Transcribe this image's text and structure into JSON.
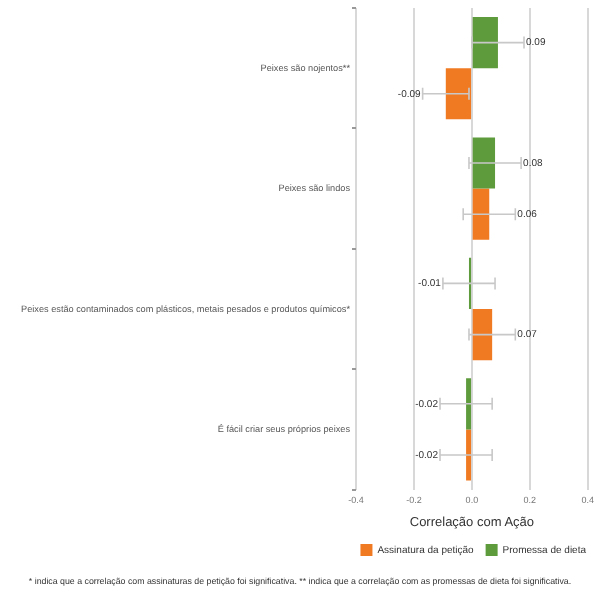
{
  "chart_data": {
    "type": "bar",
    "orientation": "horizontal",
    "xlabel": "Correlação com Ação",
    "categories": [
      "Peixes são nojentos**",
      "Peixes são lindos",
      "Peixes estão contaminados com plásticos, metais pesados e produtos químicos*",
      "É fácil criar seus próprios peixes"
    ],
    "series": [
      {
        "name": "Promessa de dieta",
        "color": "#5e9b3c",
        "values": [
          0.09,
          0.08,
          -0.01,
          -0.02
        ],
        "value_labels": [
          "0.09",
          "0.08",
          "-0.01",
          "-0.02"
        ],
        "errors": [
          0.09,
          0.09,
          0.09,
          0.09
        ]
      },
      {
        "name": "Assinatura da petição",
        "color": "#f07a22",
        "values": [
          -0.09,
          0.06,
          0.07,
          -0.02
        ],
        "value_labels": [
          "-0.09",
          "0.06",
          "0.07",
          "-0.02"
        ],
        "errors": [
          0.08,
          0.09,
          0.08,
          0.09
        ]
      }
    ],
    "xlim": [
      -0.4,
      0.4
    ],
    "xticks": [
      -0.4,
      -0.2,
      {
        "value": 0,
        "label": "0.0"
      },
      0.2,
      0.4
    ],
    "grid": "x",
    "legend": "bottom right",
    "annotations": [
      "* indica que a correlação com assinaturas de petição foi significativa. ** indica que a correlação com as promessas de dieta foi significativa."
    ]
  }
}
